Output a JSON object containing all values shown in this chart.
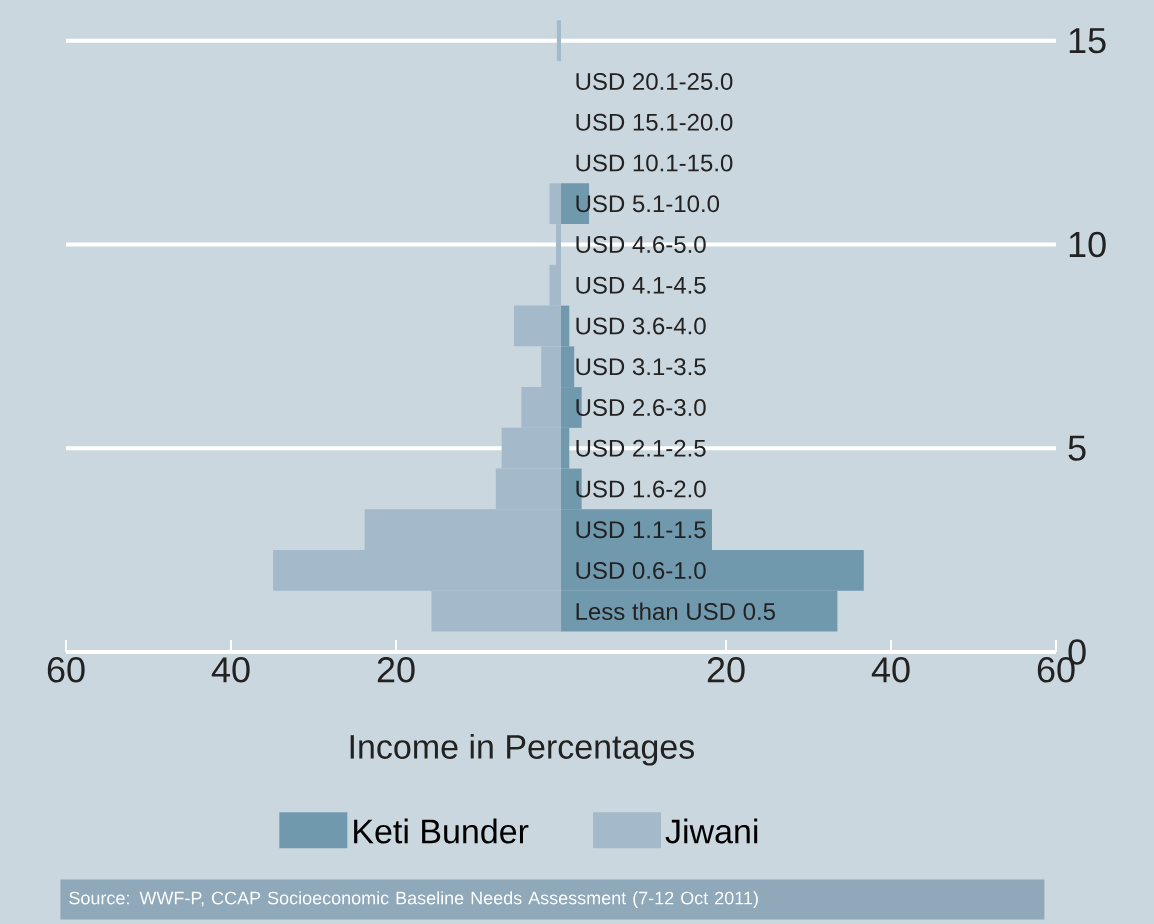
{
  "chart_data": {
    "type": "bar",
    "orientation": "horizontal",
    "categories": [
      null,
      "USD 20.1-25.0",
      "USD 15.1-20.0",
      "USD 10.1-15.0",
      "USD 5.1-10.0",
      "USD 4.6-5.0",
      "USD 4.1-4.5",
      "USD 3.6-4.0",
      "USD 3.1-3.5",
      "USD 2.6-3.0",
      "USD 2.1-2.5",
      "USD 1.6-2.0",
      "USD 1.1-1.5",
      "USD 0.6-1.0",
      "Less than USD 0.5"
    ],
    "series": [
      {
        "name": "Keti Bunder",
        "color": "#7199ae",
        "values": [
          null,
          null,
          null,
          null,
          3.4,
          null,
          null,
          1.0,
          1.6,
          2.5,
          1.0,
          2.5,
          18.3,
          36.7,
          33.5
        ]
      },
      {
        "name": "Jiwani",
        "color": "#a4b9c9",
        "values": [
          -0.5,
          null,
          null,
          null,
          -1.4,
          -0.6,
          -1.4,
          -5.7,
          -2.4,
          -4.8,
          -7.2,
          -7.9,
          -23.8,
          -34.9,
          -15.7
        ]
      }
    ],
    "xlim": [
      -60,
      60
    ],
    "xticks": [
      {
        "value": -60,
        "label": "60"
      },
      {
        "value": -40,
        "label": "40"
      },
      {
        "value": -20,
        "label": "20"
      },
      20,
      40,
      60
    ],
    "y2lim": [
      0,
      16
    ],
    "y2ticks": [
      0,
      5,
      10,
      15
    ],
    "xlabel": "Income in Percentages",
    "stacked": true,
    "grid": "y",
    "legend": "bottom",
    "annotations": [
      "Source: WWF-P, CCAP Socioeconomic Baseline Needs Assessment (7-12 Oct 2011)"
    ]
  }
}
